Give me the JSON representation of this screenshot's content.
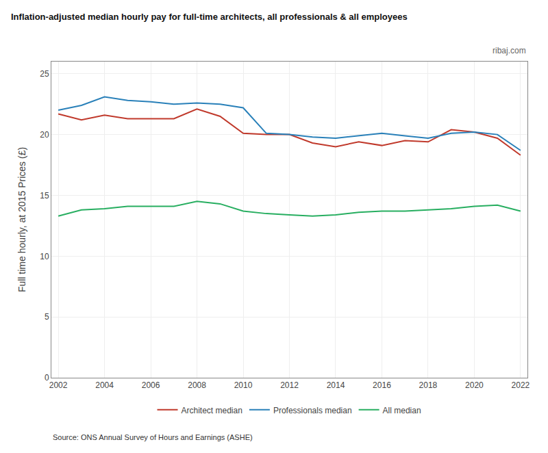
{
  "chart_data": {
    "type": "line",
    "title": "Inflation-adjusted median hourly pay for full-time architects, all professionals & all employees",
    "ylabel": "Full time hourly, at 2015 Prices (£)",
    "annotations": [
      "ribaj.com",
      "Source: ONS Annual Survey of Hours and Earnings (ASHE)"
    ],
    "x": [
      2002,
      2003,
      2004,
      2005,
      2006,
      2007,
      2008,
      2009,
      2010,
      2011,
      2012,
      2013,
      2014,
      2015,
      2016,
      2017,
      2018,
      2019,
      2020,
      2021,
      2022
    ],
    "series": [
      {
        "name": "Architect median",
        "color": "#c0392b",
        "values": [
          21.7,
          21.2,
          21.6,
          21.3,
          21.3,
          21.3,
          22.1,
          21.5,
          20.1,
          20.0,
          20.0,
          19.3,
          19.0,
          19.4,
          19.1,
          19.5,
          19.4,
          20.4,
          20.2,
          19.7,
          18.3
        ]
      },
      {
        "name": "Professionals median",
        "color": "#2980b9",
        "values": [
          22.0,
          22.4,
          23.1,
          22.8,
          22.7,
          22.5,
          22.6,
          22.5,
          22.2,
          20.1,
          20.0,
          19.8,
          19.7,
          19.9,
          20.1,
          19.9,
          19.7,
          20.1,
          20.2,
          20.0,
          18.7
        ]
      },
      {
        "name": "All median",
        "color": "#27ae60",
        "values": [
          13.3,
          13.8,
          13.9,
          14.1,
          14.1,
          14.1,
          14.5,
          14.3,
          13.7,
          13.5,
          13.4,
          13.3,
          13.4,
          13.6,
          13.7,
          13.7,
          13.8,
          13.9,
          14.1,
          14.2,
          13.7
        ]
      }
    ],
    "xlim": [
      2001.7,
      2022.3
    ],
    "xticks": [
      2002,
      2004,
      2006,
      2008,
      2010,
      2012,
      2014,
      2016,
      2018,
      2020,
      2022
    ],
    "ylim": [
      0,
      26
    ],
    "yticks": [
      0,
      5,
      10,
      15,
      20,
      25
    ],
    "grid": true,
    "legend": "bottom"
  }
}
